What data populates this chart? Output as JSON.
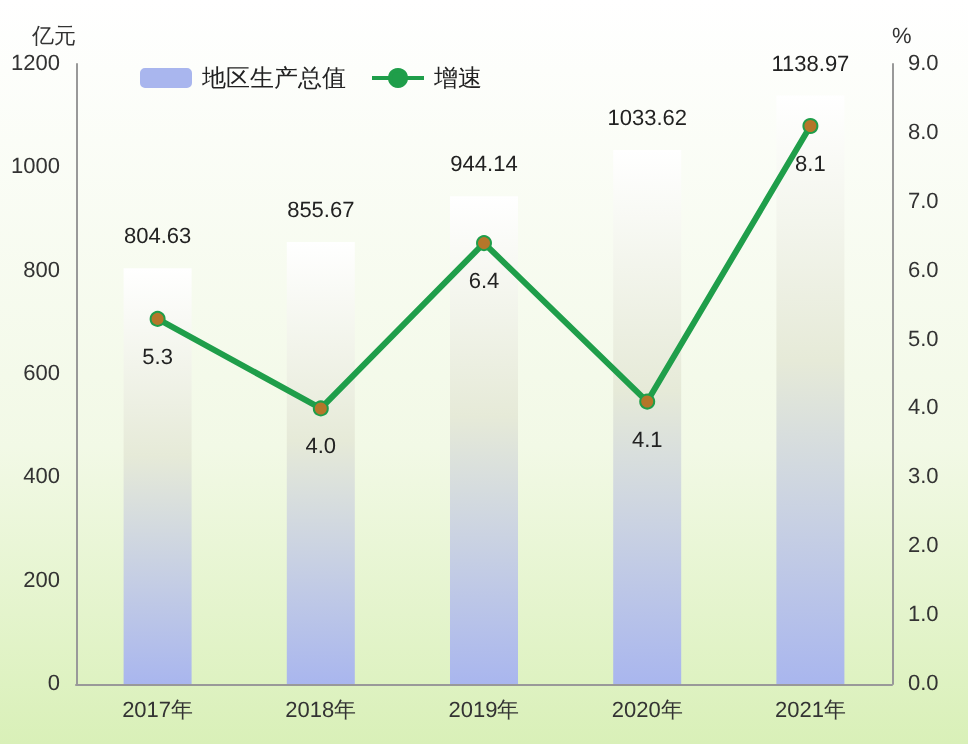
{
  "chart_data": {
    "type": "bar",
    "ylabel": "亿元",
    "y2label": "%",
    "categories": [
      "2017年",
      "2018年",
      "2019年",
      "2020年",
      "2021年"
    ],
    "series": [
      {
        "name": "地区生产总值",
        "color": "#a9b6ee",
        "values": [
          804.63,
          855.67,
          944.14,
          1033.62,
          1138.97
        ]
      },
      {
        "name": "增速",
        "type": "line",
        "axis": "y2",
        "color": "#1f9e4a",
        "values": [
          5.3,
          4.0,
          6.4,
          4.1,
          8.1
        ],
        "value_labels": [
          "5.3",
          "4.0",
          "6.4",
          "4.1",
          "8.1"
        ]
      }
    ],
    "ylim": [
      0,
      1200
    ],
    "yticks": [
      0,
      200,
      400,
      600,
      800,
      1000,
      1200
    ],
    "y2lim": [
      0,
      9
    ],
    "y2ticks": [
      {
        "value": 0,
        "label": "0.0"
      },
      {
        "value": 1,
        "label": "1.0"
      },
      {
        "value": 2,
        "label": "2.0"
      },
      {
        "value": 3,
        "label": "3.0"
      },
      {
        "value": 4,
        "label": "4.0"
      },
      {
        "value": 5,
        "label": "5.0"
      },
      {
        "value": 6,
        "label": "6.0"
      },
      {
        "value": 7,
        "label": "7.0"
      },
      {
        "value": 8,
        "label": "8.0"
      },
      {
        "value": 9,
        "label": "9.0"
      }
    ],
    "data_labels": true,
    "legend": "top left",
    "grid": false,
    "marker": "circle",
    "line_style": "solid"
  }
}
